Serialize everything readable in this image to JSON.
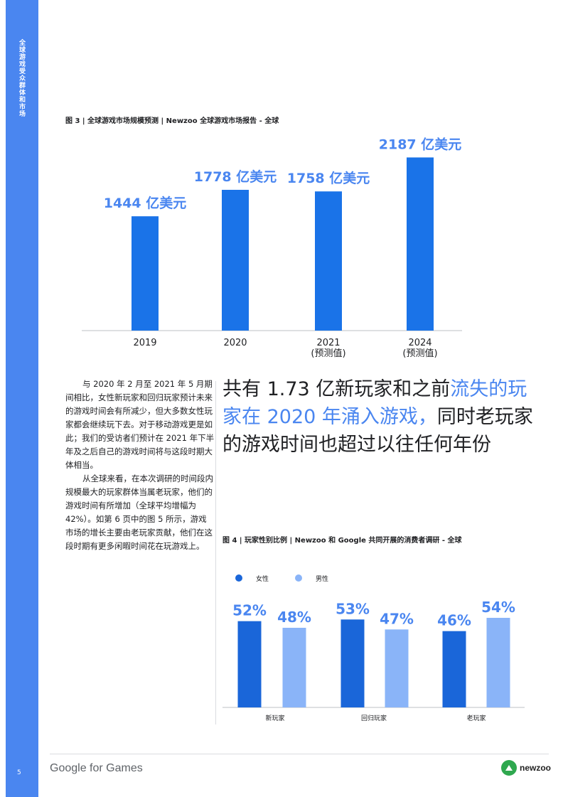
{
  "sidebar": {
    "section_title": "全球游戏受众群体和市场",
    "page_number": "5"
  },
  "figure3": {
    "caption": "图 3 | 全球游戏市场规模预测 | Newzoo 全球游戏市场报告 - 全球",
    "bar_color": "#1a73e8",
    "label_color": "#4a86f0"
  },
  "figure4": {
    "caption": "图 4 | 玩家性别比例 | Newzoo 和 Google 共同开展的消费者调研 - 全球",
    "female_color": "#1a66d9",
    "male_color": "#8ab4f8",
    "label_color": "#4a86f0"
  },
  "chart_data": [
    {
      "type": "bar",
      "categories": [
        "2019",
        "2020",
        "2021\n(预测值)",
        "2024\n(预测值)"
      ],
      "values": [
        1444,
        1778,
        1758,
        2187
      ],
      "data_labels": [
        "1444 亿美元",
        "1778 亿美元",
        "1758 亿美元",
        "2187 亿美元"
      ],
      "unit": "亿美元",
      "ylim": [
        0,
        2200
      ],
      "grid": false
    },
    {
      "type": "bar",
      "categories": [
        "新玩家",
        "回归玩家",
        "老玩家"
      ],
      "series": [
        {
          "name": "女性",
          "values": [
            52,
            53,
            46
          ],
          "labels": [
            "52%",
            "53%",
            "46%"
          ]
        },
        {
          "name": "男性",
          "values": [
            48,
            47,
            54
          ],
          "labels": [
            "48%",
            "47%",
            "54%"
          ]
        }
      ],
      "ylim": [
        0,
        60
      ],
      "legend": "top-left",
      "grid": false
    }
  ],
  "body": {
    "para1": "与 2020 年 2 月至 2021 年 5 月期间相比，女性新玩家和回归玩家预计未来的游戏时间会有所减少，但大多数女性玩家都会继续玩下去。对于移动游戏更是如此；我们的受访者们预计在 2021 年下半年及之后自己的游戏时间将与这段时期大体相当。",
    "para2": "从全球来看，在本次调研的时间段内规模最大的玩家群体当属老玩家，他们的游戏时间有所增加（全球平均增幅为 42%）。如第 6 页中的图 5 所示，游戏市场的增长主要由老玩家贡献，他们在这段时期有更多闲暇时间花在玩游戏上。"
  },
  "pull_quote": {
    "part1": "共有 1.73 亿新玩家和之前",
    "highlight": "流失的玩家在 2020 年涌入游戏，",
    "part2": "同时老玩家的游戏时间也超过以往任何年份"
  },
  "footer": {
    "brand": "Google for Games",
    "partner_logo_text": "newzoo"
  }
}
